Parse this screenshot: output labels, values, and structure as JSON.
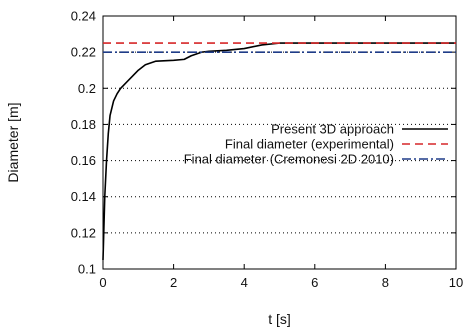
{
  "chart_data": {
    "type": "line",
    "title": "",
    "xlabel": "t [s]",
    "ylabel": "Diameter [m]",
    "xlim": [
      0,
      10
    ],
    "ylim": [
      0.1,
      0.24
    ],
    "x_ticks": [
      "0",
      "2",
      "4",
      "6",
      "8",
      "10"
    ],
    "y_ticks": [
      "0.1",
      "0.12",
      "0.14",
      "0.16",
      "0.18",
      "0.2",
      "0.22",
      "0.24"
    ],
    "grid": "horizontal dotted",
    "legend_position": "right",
    "series": [
      {
        "name": "Present 3D approach",
        "color": "#000000",
        "style": "solid",
        "x": [
          0,
          0.05,
          0.1,
          0.15,
          0.2,
          0.3,
          0.4,
          0.5,
          0.6,
          0.8,
          1.0,
          1.2,
          1.5,
          2.0,
          2.3,
          2.5,
          2.8,
          3.0,
          3.5,
          4.0,
          4.5,
          5.0,
          6.0,
          7.0,
          8.0,
          9.0,
          10.0
        ],
        "y": [
          0.105,
          0.14,
          0.16,
          0.175,
          0.185,
          0.193,
          0.197,
          0.2,
          0.202,
          0.206,
          0.21,
          0.213,
          0.215,
          0.2155,
          0.216,
          0.218,
          0.22,
          0.2205,
          0.221,
          0.222,
          0.224,
          0.225,
          0.225,
          0.225,
          0.225,
          0.225,
          0.225
        ]
      },
      {
        "name": "Final diameter (experimental)",
        "color": "#d62728",
        "style": "dashed",
        "x": [
          0,
          10
        ],
        "y": [
          0.225,
          0.225
        ]
      },
      {
        "name": "Final diameter (Cremonesi 2D 2010)",
        "color": "#1f3c88",
        "style": "dash-dot",
        "x": [
          0,
          10
        ],
        "y": [
          0.22,
          0.22
        ]
      }
    ]
  }
}
